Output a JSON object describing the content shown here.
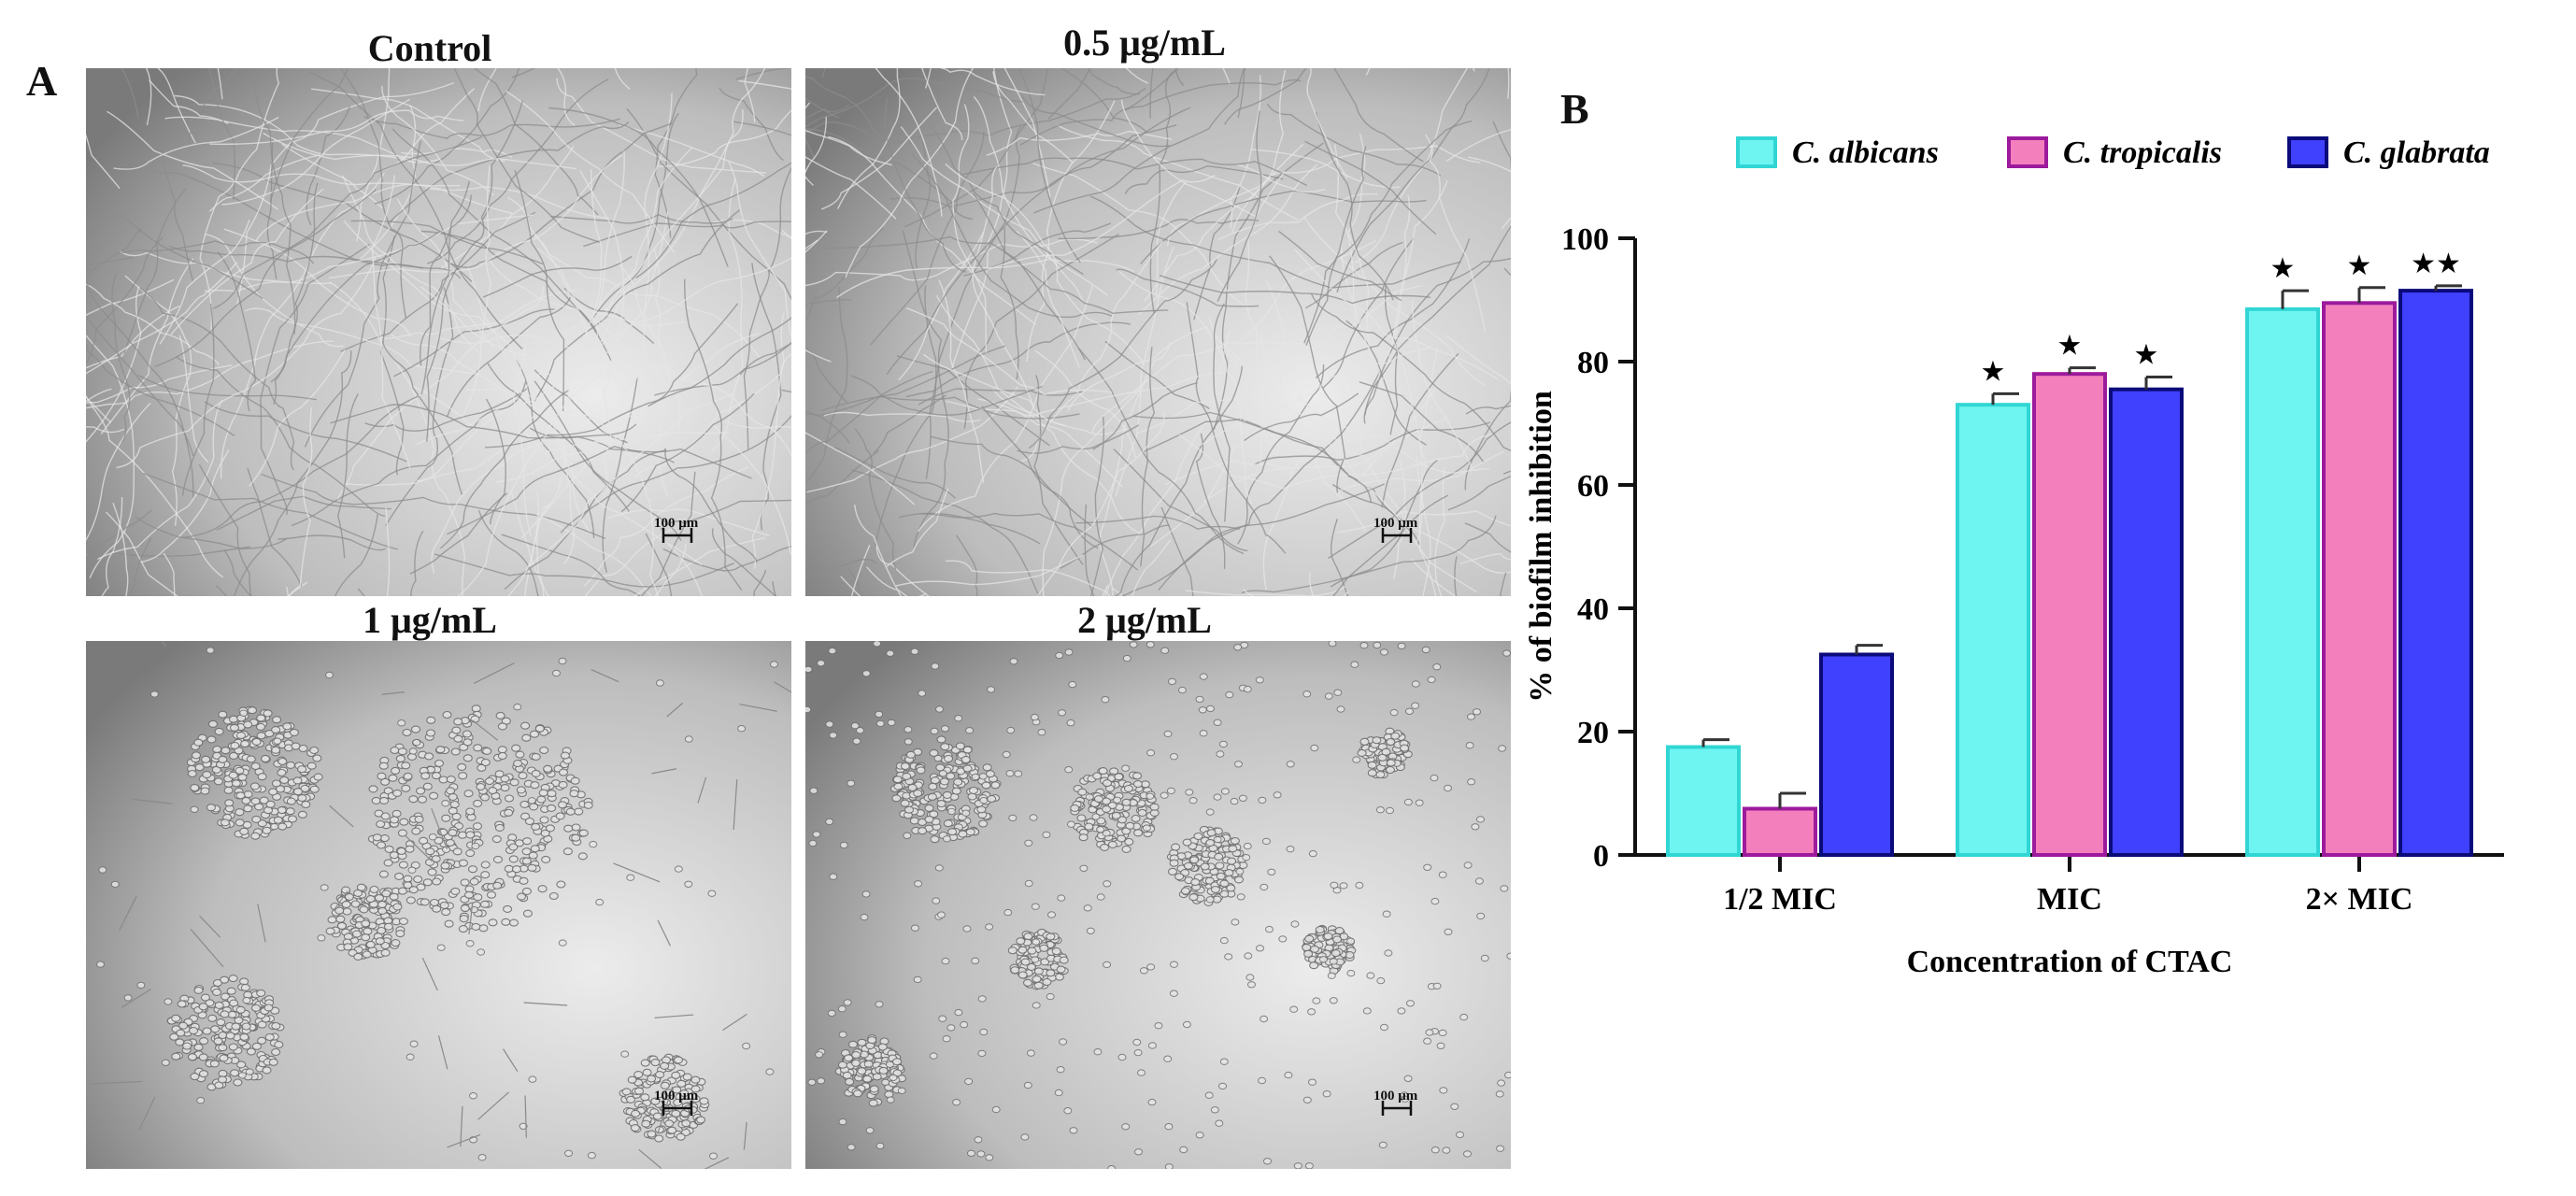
{
  "panel_a": {
    "letter": "A",
    "images": [
      {
        "title": "Control",
        "scale_label": "100 μm",
        "content": "hyphae"
      },
      {
        "title": "0.5 μg/mL",
        "scale_label": "100 μm",
        "content": "hyphae"
      },
      {
        "title": "1 μg/mL",
        "scale_label": "100 μm",
        "content": "clusters"
      },
      {
        "title": "2 μg/mL",
        "scale_label": "100 μm",
        "content": "cells"
      }
    ]
  },
  "panel_b": {
    "letter": "B"
  },
  "chart_data": {
    "type": "bar",
    "title": "",
    "xlabel": "Concentration of CTAC",
    "ylabel": "% of biofilm inhibition",
    "ylim": [
      0,
      100
    ],
    "yticks": [
      0,
      20,
      40,
      60,
      80,
      100
    ],
    "categories": [
      "1/2 MIC",
      "MIC",
      "2× MIC"
    ],
    "legend_position": "top",
    "series": [
      {
        "name": "C. albicans",
        "color": "#6ef5f2",
        "edge": "#31d6d4",
        "values": [
          17.5,
          73,
          88.5
        ],
        "errors": [
          1.2,
          1.8,
          3.0
        ],
        "significance": [
          "",
          "★",
          "★"
        ]
      },
      {
        "name": "C. tropicalis",
        "color": "#f47fbd",
        "edge": "#9c1a9c",
        "values": [
          7.5,
          78,
          89.5
        ],
        "errors": [
          2.5,
          1.0,
          2.5
        ],
        "significance": [
          "",
          "★",
          "★"
        ]
      },
      {
        "name": "C. glabrata",
        "color": "#4040ff",
        "edge": "#0a0a7a",
        "values": [
          32.5,
          75.5,
          91.5
        ],
        "errors": [
          1.5,
          2.0,
          0.8
        ],
        "significance": [
          "",
          "★",
          "★★"
        ]
      }
    ]
  }
}
